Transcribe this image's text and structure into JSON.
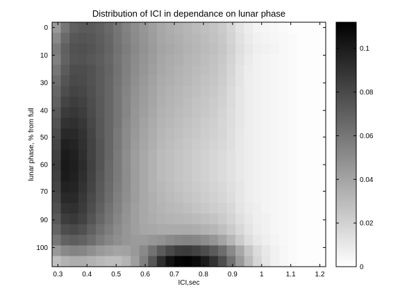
{
  "chart_data": {
    "type": "heatmap",
    "title": "Distribution of ICI in dependance on lunar phase",
    "xlabel": "ICI,sec",
    "ylabel": "lunar phase, % from full",
    "x_ticks": [
      "0.3",
      "0.4",
      "0.5",
      "0.6",
      "0.7",
      "0.8",
      "0.9",
      "1",
      "1.1",
      "1.2"
    ],
    "y_ticks": [
      "0",
      "10",
      "30",
      "40",
      "50",
      "60",
      "70",
      "90",
      "100"
    ],
    "x_tick_positions": [
      0.3,
      0.4,
      0.5,
      0.6,
      0.7,
      0.8,
      0.9,
      1.0,
      1.1,
      1.2
    ],
    "y_tick_rows": [
      0,
      2.6,
      5.2,
      7.8,
      10.3,
      12.9,
      15.4,
      18.1,
      20.7
    ],
    "xlim": [
      0.28,
      1.22
    ],
    "cell_width": 0.03,
    "first_cell_center": 0.295,
    "colorbar": {
      "range": [
        0,
        0.112
      ],
      "ticks": [
        "0",
        "0.02",
        "0.04",
        "0.06",
        "0.08",
        "0.1"
      ],
      "tick_values": [
        0,
        0.02,
        0.04,
        0.06,
        0.08,
        0.1
      ],
      "colormap": "gray-reversed"
    },
    "values": [
      [
        0.045,
        0.06,
        0.07,
        0.072,
        0.072,
        0.07,
        0.066,
        0.06,
        0.055,
        0.05,
        0.046,
        0.042,
        0.038,
        0.036,
        0.034,
        0.032,
        0.03,
        0.028,
        0.026,
        0.023,
        0.018,
        0.012,
        0.008,
        0.005,
        0.004,
        0.003,
        0.002,
        0.001,
        0.001,
        0.001,
        0.001
      ],
      [
        0.052,
        0.066,
        0.074,
        0.075,
        0.074,
        0.071,
        0.067,
        0.061,
        0.056,
        0.051,
        0.047,
        0.043,
        0.039,
        0.037,
        0.035,
        0.033,
        0.031,
        0.029,
        0.027,
        0.024,
        0.019,
        0.013,
        0.009,
        0.006,
        0.005,
        0.004,
        0.003,
        0.002,
        0.001,
        0.001,
        0.001
      ],
      [
        0.058,
        0.07,
        0.076,
        0.077,
        0.075,
        0.072,
        0.068,
        0.062,
        0.057,
        0.052,
        0.048,
        0.044,
        0.04,
        0.038,
        0.036,
        0.034,
        0.032,
        0.03,
        0.028,
        0.025,
        0.02,
        0.014,
        0.01,
        0.007,
        0.006,
        0.005,
        0.003,
        0.002,
        0.001,
        0.001,
        0.001
      ],
      [
        0.056,
        0.069,
        0.075,
        0.076,
        0.074,
        0.071,
        0.067,
        0.061,
        0.056,
        0.051,
        0.047,
        0.043,
        0.039,
        0.037,
        0.035,
        0.033,
        0.031,
        0.029,
        0.027,
        0.024,
        0.019,
        0.013,
        0.009,
        0.006,
        0.005,
        0.004,
        0.003,
        0.002,
        0.001,
        0.001,
        0.001
      ],
      [
        0.06,
        0.072,
        0.078,
        0.078,
        0.076,
        0.072,
        0.068,
        0.062,
        0.056,
        0.05,
        0.046,
        0.042,
        0.038,
        0.036,
        0.034,
        0.032,
        0.03,
        0.028,
        0.026,
        0.023,
        0.018,
        0.012,
        0.008,
        0.006,
        0.005,
        0.004,
        0.003,
        0.002,
        0.001,
        0.001,
        0.001
      ],
      [
        0.064,
        0.075,
        0.08,
        0.079,
        0.076,
        0.072,
        0.067,
        0.061,
        0.055,
        0.049,
        0.045,
        0.041,
        0.037,
        0.035,
        0.033,
        0.031,
        0.029,
        0.027,
        0.025,
        0.022,
        0.017,
        0.012,
        0.008,
        0.006,
        0.005,
        0.004,
        0.003,
        0.002,
        0.001,
        0.001,
        0.001
      ],
      [
        0.067,
        0.078,
        0.082,
        0.081,
        0.077,
        0.072,
        0.067,
        0.06,
        0.054,
        0.048,
        0.044,
        0.04,
        0.036,
        0.034,
        0.032,
        0.03,
        0.028,
        0.026,
        0.024,
        0.021,
        0.016,
        0.011,
        0.008,
        0.006,
        0.005,
        0.004,
        0.003,
        0.002,
        0.001,
        0.001,
        0.001
      ],
      [
        0.07,
        0.082,
        0.085,
        0.083,
        0.078,
        0.073,
        0.067,
        0.06,
        0.053,
        0.047,
        0.043,
        0.039,
        0.035,
        0.033,
        0.031,
        0.029,
        0.027,
        0.025,
        0.023,
        0.02,
        0.016,
        0.011,
        0.008,
        0.006,
        0.005,
        0.004,
        0.003,
        0.002,
        0.001,
        0.001,
        0.001
      ],
      [
        0.073,
        0.086,
        0.088,
        0.085,
        0.079,
        0.073,
        0.067,
        0.06,
        0.053,
        0.046,
        0.042,
        0.038,
        0.034,
        0.032,
        0.03,
        0.028,
        0.026,
        0.024,
        0.022,
        0.019,
        0.015,
        0.011,
        0.008,
        0.006,
        0.005,
        0.004,
        0.003,
        0.002,
        0.001,
        0.001,
        0.001
      ],
      [
        0.076,
        0.09,
        0.091,
        0.088,
        0.081,
        0.074,
        0.067,
        0.06,
        0.052,
        0.046,
        0.041,
        0.037,
        0.033,
        0.031,
        0.029,
        0.027,
        0.025,
        0.023,
        0.021,
        0.018,
        0.015,
        0.011,
        0.008,
        0.006,
        0.005,
        0.004,
        0.003,
        0.002,
        0.001,
        0.001,
        0.001
      ],
      [
        0.079,
        0.094,
        0.094,
        0.09,
        0.082,
        0.074,
        0.067,
        0.059,
        0.051,
        0.045,
        0.04,
        0.036,
        0.032,
        0.03,
        0.028,
        0.026,
        0.024,
        0.022,
        0.02,
        0.018,
        0.014,
        0.01,
        0.008,
        0.006,
        0.005,
        0.004,
        0.003,
        0.002,
        0.001,
        0.001,
        0.001
      ],
      [
        0.082,
        0.098,
        0.096,
        0.091,
        0.083,
        0.075,
        0.067,
        0.059,
        0.051,
        0.044,
        0.039,
        0.035,
        0.031,
        0.029,
        0.027,
        0.025,
        0.023,
        0.021,
        0.019,
        0.017,
        0.014,
        0.01,
        0.008,
        0.006,
        0.005,
        0.004,
        0.003,
        0.002,
        0.001,
        0.001,
        0.001
      ],
      [
        0.084,
        0.1,
        0.098,
        0.092,
        0.083,
        0.075,
        0.067,
        0.058,
        0.05,
        0.043,
        0.038,
        0.034,
        0.03,
        0.028,
        0.026,
        0.024,
        0.022,
        0.02,
        0.018,
        0.016,
        0.013,
        0.01,
        0.008,
        0.006,
        0.005,
        0.004,
        0.003,
        0.002,
        0.001,
        0.001,
        0.001
      ],
      [
        0.085,
        0.101,
        0.099,
        0.093,
        0.084,
        0.075,
        0.066,
        0.058,
        0.05,
        0.043,
        0.038,
        0.034,
        0.03,
        0.028,
        0.026,
        0.024,
        0.022,
        0.02,
        0.018,
        0.016,
        0.013,
        0.01,
        0.008,
        0.006,
        0.005,
        0.004,
        0.003,
        0.002,
        0.001,
        0.001,
        0.001
      ],
      [
        0.084,
        0.1,
        0.098,
        0.092,
        0.083,
        0.074,
        0.066,
        0.058,
        0.05,
        0.043,
        0.038,
        0.034,
        0.03,
        0.028,
        0.026,
        0.024,
        0.022,
        0.02,
        0.018,
        0.016,
        0.013,
        0.01,
        0.008,
        0.006,
        0.005,
        0.004,
        0.003,
        0.002,
        0.001,
        0.001,
        0.001
      ],
      [
        0.082,
        0.097,
        0.096,
        0.09,
        0.082,
        0.073,
        0.065,
        0.057,
        0.05,
        0.043,
        0.038,
        0.034,
        0.031,
        0.029,
        0.027,
        0.025,
        0.023,
        0.021,
        0.019,
        0.017,
        0.014,
        0.011,
        0.008,
        0.006,
        0.005,
        0.004,
        0.003,
        0.002,
        0.001,
        0.001,
        0.001
      ],
      [
        0.08,
        0.094,
        0.094,
        0.088,
        0.08,
        0.072,
        0.064,
        0.056,
        0.049,
        0.043,
        0.038,
        0.035,
        0.032,
        0.03,
        0.028,
        0.026,
        0.024,
        0.022,
        0.02,
        0.018,
        0.015,
        0.011,
        0.008,
        0.006,
        0.005,
        0.004,
        0.003,
        0.002,
        0.001,
        0.001,
        0.001
      ],
      [
        0.077,
        0.09,
        0.091,
        0.086,
        0.078,
        0.07,
        0.062,
        0.055,
        0.048,
        0.042,
        0.038,
        0.035,
        0.033,
        0.031,
        0.03,
        0.028,
        0.026,
        0.024,
        0.022,
        0.02,
        0.017,
        0.012,
        0.009,
        0.007,
        0.005,
        0.004,
        0.003,
        0.002,
        0.001,
        0.001,
        0.001
      ],
      [
        0.073,
        0.085,
        0.087,
        0.083,
        0.075,
        0.067,
        0.06,
        0.053,
        0.047,
        0.042,
        0.038,
        0.036,
        0.034,
        0.033,
        0.032,
        0.031,
        0.03,
        0.028,
        0.026,
        0.023,
        0.019,
        0.014,
        0.01,
        0.007,
        0.006,
        0.004,
        0.003,
        0.002,
        0.001,
        0.001,
        0.001
      ],
      [
        0.068,
        0.078,
        0.08,
        0.077,
        0.07,
        0.063,
        0.057,
        0.051,
        0.046,
        0.042,
        0.039,
        0.038,
        0.037,
        0.037,
        0.037,
        0.037,
        0.036,
        0.034,
        0.032,
        0.028,
        0.023,
        0.017,
        0.012,
        0.008,
        0.006,
        0.004,
        0.003,
        0.002,
        0.001,
        0.001,
        0.001
      ],
      [
        0.06,
        0.069,
        0.071,
        0.069,
        0.064,
        0.058,
        0.053,
        0.049,
        0.046,
        0.044,
        0.044,
        0.046,
        0.048,
        0.051,
        0.053,
        0.054,
        0.053,
        0.05,
        0.046,
        0.04,
        0.032,
        0.023,
        0.015,
        0.01,
        0.007,
        0.005,
        0.003,
        0.002,
        0.001,
        0.001,
        0.001
      ],
      [
        0.045,
        0.052,
        0.054,
        0.053,
        0.049,
        0.045,
        0.042,
        0.04,
        0.041,
        0.045,
        0.052,
        0.062,
        0.072,
        0.08,
        0.085,
        0.086,
        0.083,
        0.078,
        0.072,
        0.064,
        0.052,
        0.038,
        0.025,
        0.016,
        0.01,
        0.006,
        0.004,
        0.002,
        0.001,
        0.001,
        0.001
      ],
      [
        0.028,
        0.034,
        0.036,
        0.036,
        0.034,
        0.031,
        0.029,
        0.029,
        0.033,
        0.042,
        0.056,
        0.074,
        0.092,
        0.104,
        0.11,
        0.111,
        0.108,
        0.1,
        0.09,
        0.078,
        0.062,
        0.045,
        0.03,
        0.018,
        0.011,
        0.006,
        0.004,
        0.002,
        0.001,
        0.001,
        0.001
      ]
    ]
  }
}
